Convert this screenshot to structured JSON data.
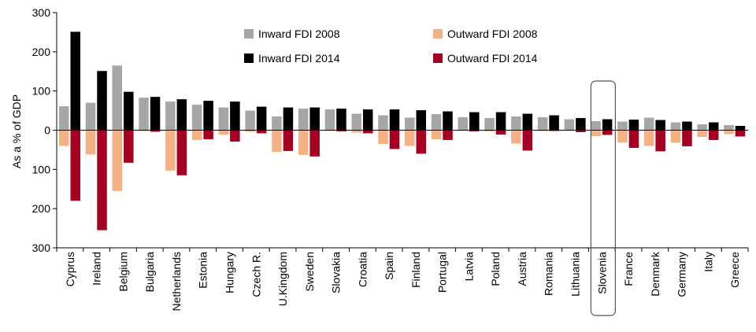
{
  "chart_data": {
    "type": "bar",
    "ylabel": "As a % of GDP",
    "ylim": [
      -300,
      300
    ],
    "ytick_values": [
      300,
      200,
      100,
      0,
      -100,
      -200,
      -300
    ],
    "ytick_labels": [
      "300",
      "200",
      "100",
      "0",
      "100",
      "200",
      "300"
    ],
    "grid": false,
    "legend_position": "top-center",
    "highlighted_category": "Slovenia",
    "categories": [
      "Cyprus",
      "Ireland",
      "Belgium",
      "Bulgaria",
      "Netherlands",
      "Estonia",
      "Hungary",
      "Czech R.",
      "U.Kingdom",
      "Sweden",
      "Slovakia",
      "Croatia",
      "Spain",
      "Finland",
      "Portugal",
      "Latvia",
      "Poland",
      "Austria",
      "Romania",
      "Lithuania",
      "Slovenia",
      "France",
      "Denmark",
      "Germany",
      "Italy",
      "Greece"
    ],
    "series": [
      {
        "name": "Inward FDI  2008",
        "color": "#a6a6a6",
        "values": [
          61,
          70,
          165,
          83,
          73,
          65,
          58,
          50,
          35,
          55,
          53,
          42,
          38,
          32,
          41,
          33,
          31,
          35,
          33,
          28,
          23,
          22,
          32,
          20,
          15,
          13
        ]
      },
      {
        "name": "Inward FDI  2014",
        "color": "#000000",
        "values": [
          251,
          151,
          98,
          85,
          79,
          75,
          73,
          60,
          58,
          58,
          55,
          53,
          53,
          51,
          48,
          46,
          46,
          42,
          38,
          31,
          28,
          27,
          26,
          22,
          20,
          11
        ]
      },
      {
        "name": "Outward FDI  2008",
        "color": "#f4b183",
        "values": [
          -40,
          -62,
          -155,
          -2,
          -103,
          -25,
          -11,
          -4,
          -55,
          -63,
          -2,
          -6,
          -35,
          -40,
          -23,
          -1,
          -3,
          -34,
          -2,
          -1,
          -15,
          -31,
          -40,
          -32,
          -17,
          -10
        ]
      },
      {
        "name": "Outward FDI  2014",
        "color": "#a50021",
        "values": [
          -180,
          -255,
          -83,
          -4,
          -115,
          -23,
          -29,
          -8,
          -53,
          -67,
          -3,
          -8,
          -48,
          -60,
          -25,
          -3,
          -11,
          -52,
          -2,
          -5,
          -12,
          -45,
          -54,
          -41,
          -25,
          -16
        ]
      }
    ]
  }
}
